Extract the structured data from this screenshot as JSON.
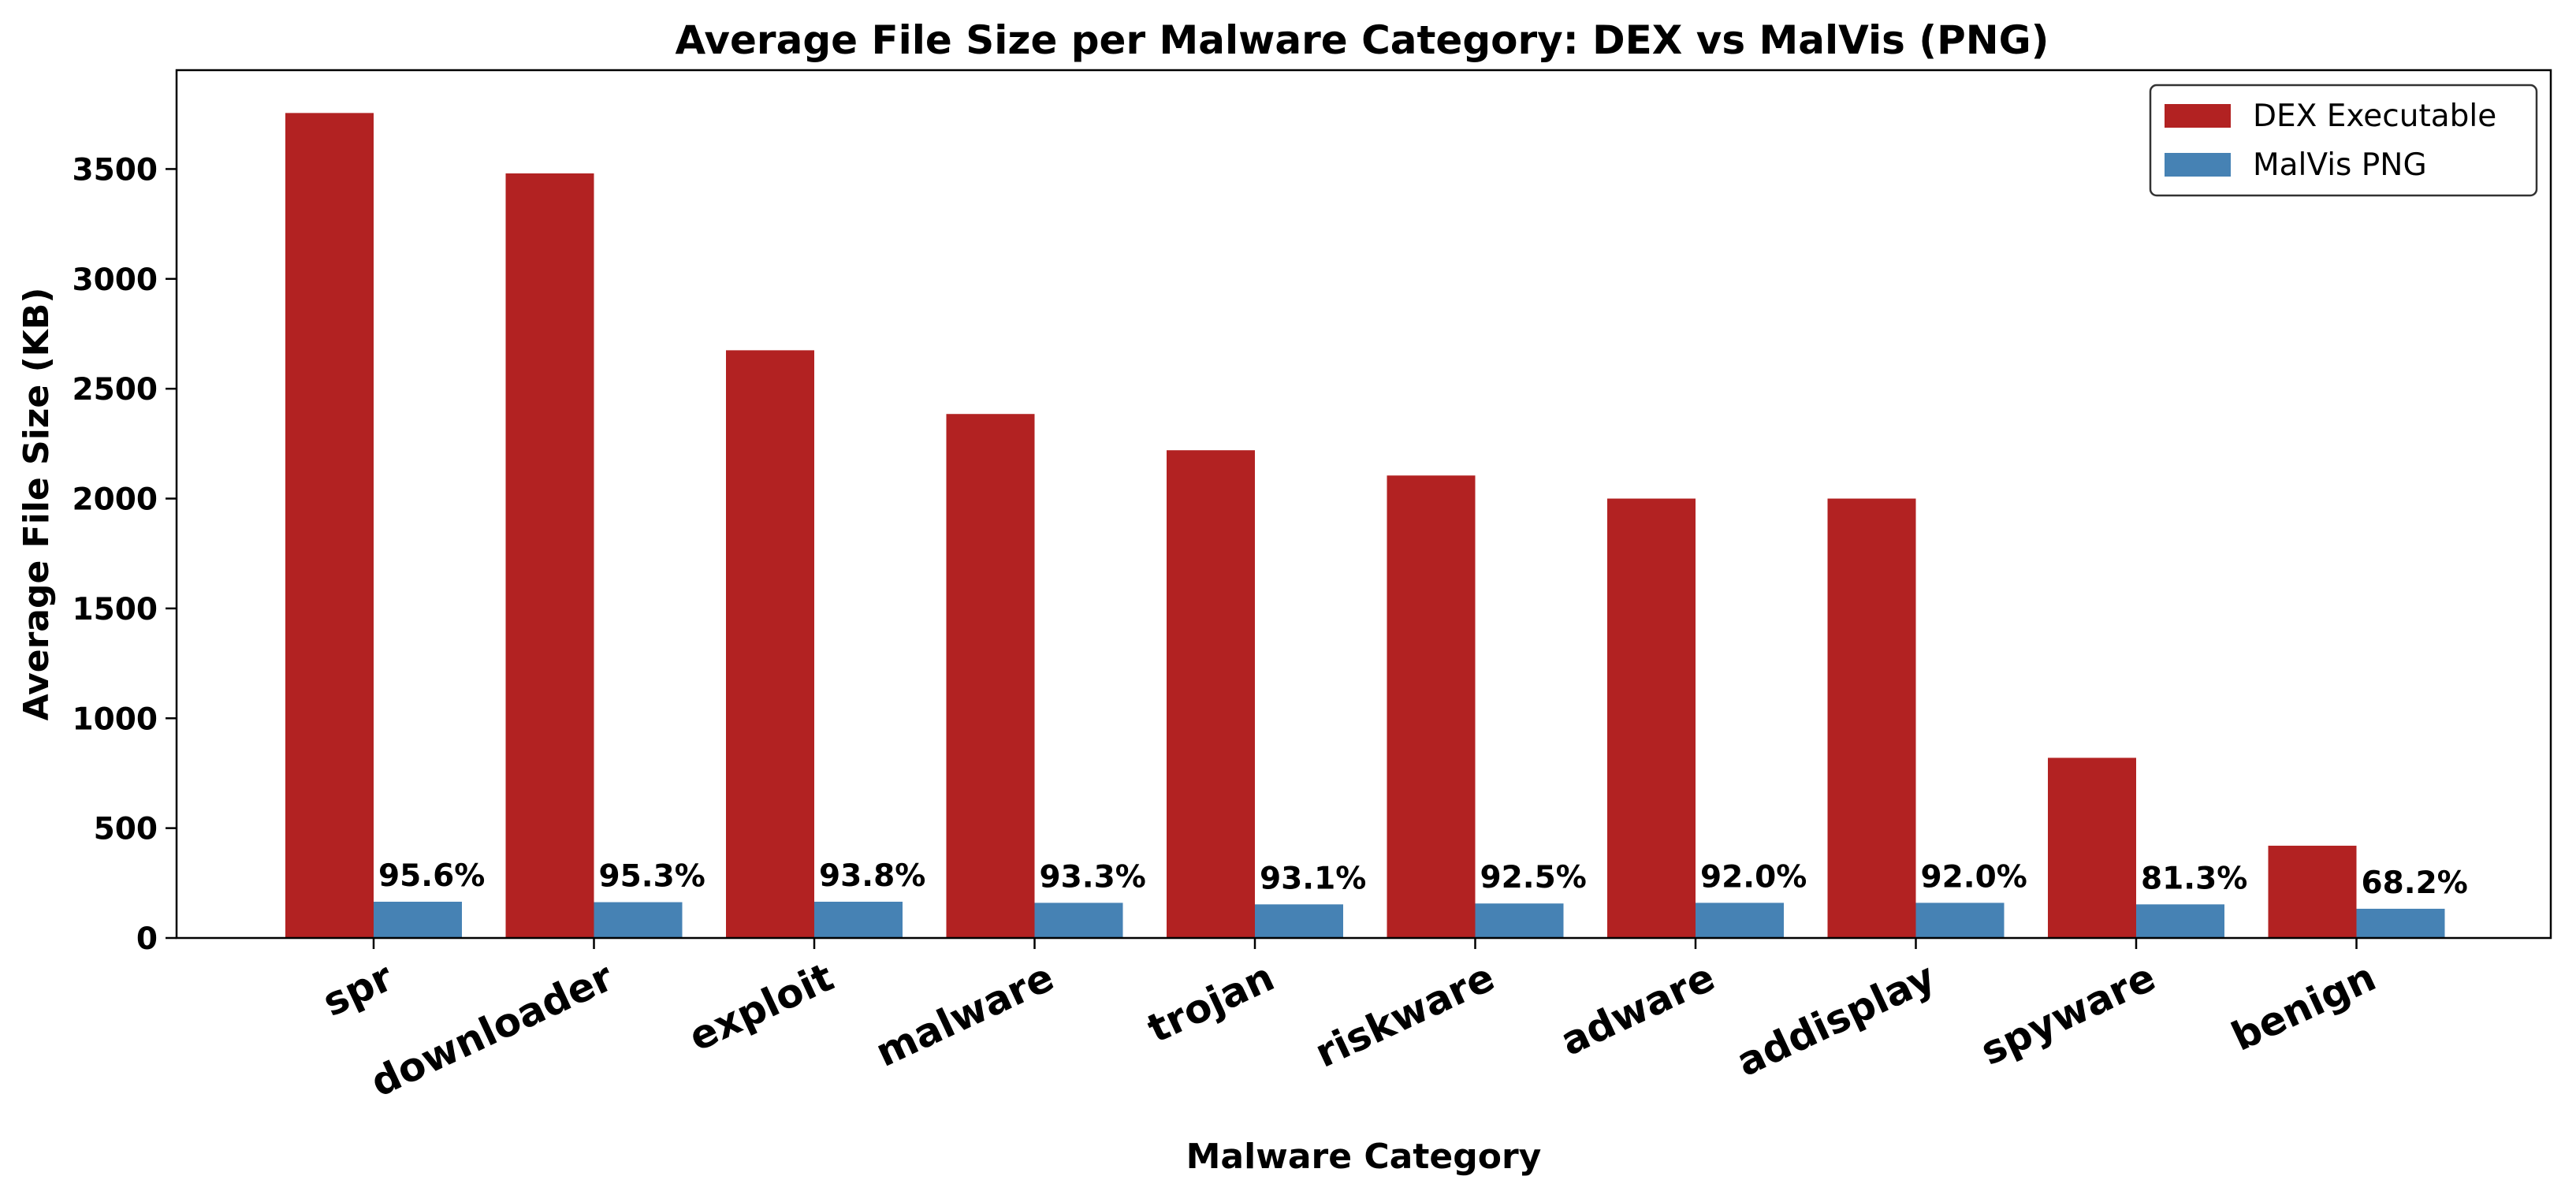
{
  "chart_data": {
    "type": "bar",
    "title": "Average File Size per Malware Category: DEX vs MalVis (PNG)",
    "xlabel": "Malware Category",
    "ylabel": "Average File Size (KB)",
    "ylim": [
      0,
      3950
    ],
    "yticks": [
      0,
      500,
      1000,
      1500,
      2000,
      2500,
      3000,
      3500
    ],
    "categories": [
      "spr",
      "downloader",
      "exploit",
      "malware",
      "trojan",
      "riskware",
      "adware",
      "addisplay",
      "spyware",
      "benign"
    ],
    "series": [
      {
        "name": "DEX Executable",
        "color": "#b22222",
        "values": [
          3755,
          3480,
          2675,
          2385,
          2220,
          2105,
          2000,
          2000,
          820,
          420
        ]
      },
      {
        "name": "MalVis PNG",
        "color": "#4682b4",
        "values": [
          165,
          163,
          165,
          160,
          153,
          157,
          160,
          160,
          153,
          133
        ]
      }
    ],
    "annotations": [
      "95.6%",
      "95.3%",
      "93.8%",
      "93.3%",
      "93.1%",
      "92.5%",
      "92.0%",
      "92.0%",
      "81.3%",
      "68.2%"
    ],
    "legend_position": "top-right",
    "grid": false
  }
}
